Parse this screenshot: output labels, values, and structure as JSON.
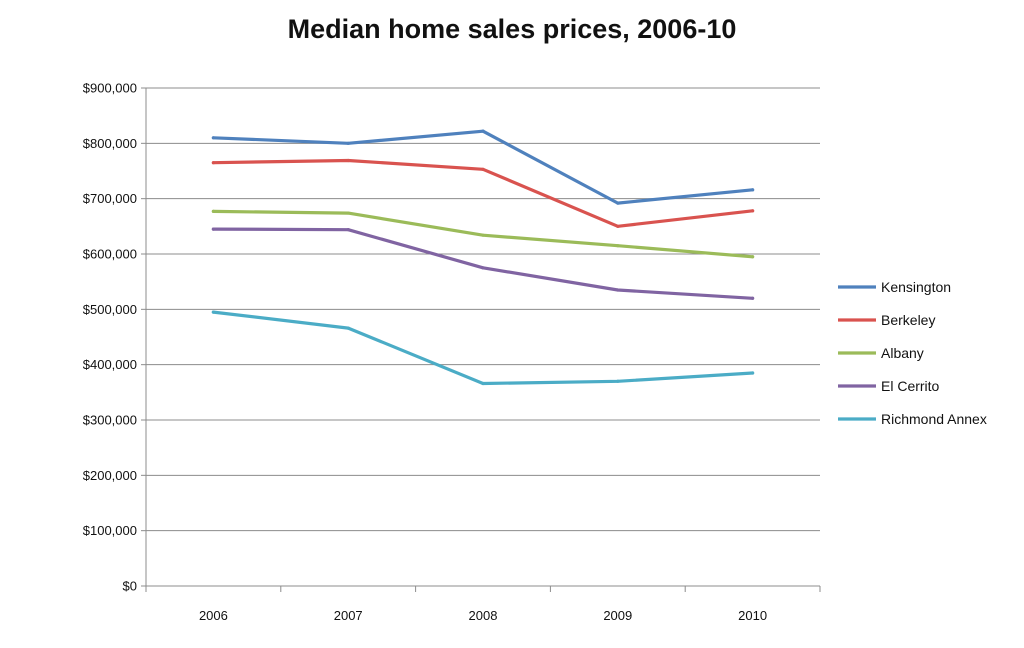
{
  "chart_data": {
    "type": "line",
    "title": "Median home sales prices, 2006-10",
    "xlabel": "",
    "ylabel": "",
    "categories": [
      "2006",
      "2007",
      "2008",
      "2009",
      "2010"
    ],
    "ylim": [
      0,
      900000
    ],
    "yticks": [
      0,
      100000,
      200000,
      300000,
      400000,
      500000,
      600000,
      700000,
      800000,
      900000
    ],
    "ytick_labels": [
      "$0",
      "$100,000",
      "$200,000",
      "$300,000",
      "$400,000",
      "$500,000",
      "$600,000",
      "$700,000",
      "$800,000",
      "$900,000"
    ],
    "grid": true,
    "legend_position": "right",
    "series": [
      {
        "name": "Kensington",
        "color": "#4f81bd",
        "values": [
          810000,
          800000,
          822000,
          692000,
          716000
        ]
      },
      {
        "name": "Berkeley",
        "color": "#d9534f",
        "values": [
          765000,
          769000,
          753000,
          650000,
          678000
        ]
      },
      {
        "name": "Albany",
        "color": "#9bbb59",
        "values": [
          677000,
          674000,
          634000,
          615000,
          595000
        ]
      },
      {
        "name": "El Cerrito",
        "color": "#8064a2",
        "values": [
          645000,
          644000,
          575000,
          535000,
          520000
        ]
      },
      {
        "name": "Richmond Annex",
        "color": "#4bacc6",
        "values": [
          495000,
          466000,
          366000,
          370000,
          385000
        ]
      }
    ]
  }
}
